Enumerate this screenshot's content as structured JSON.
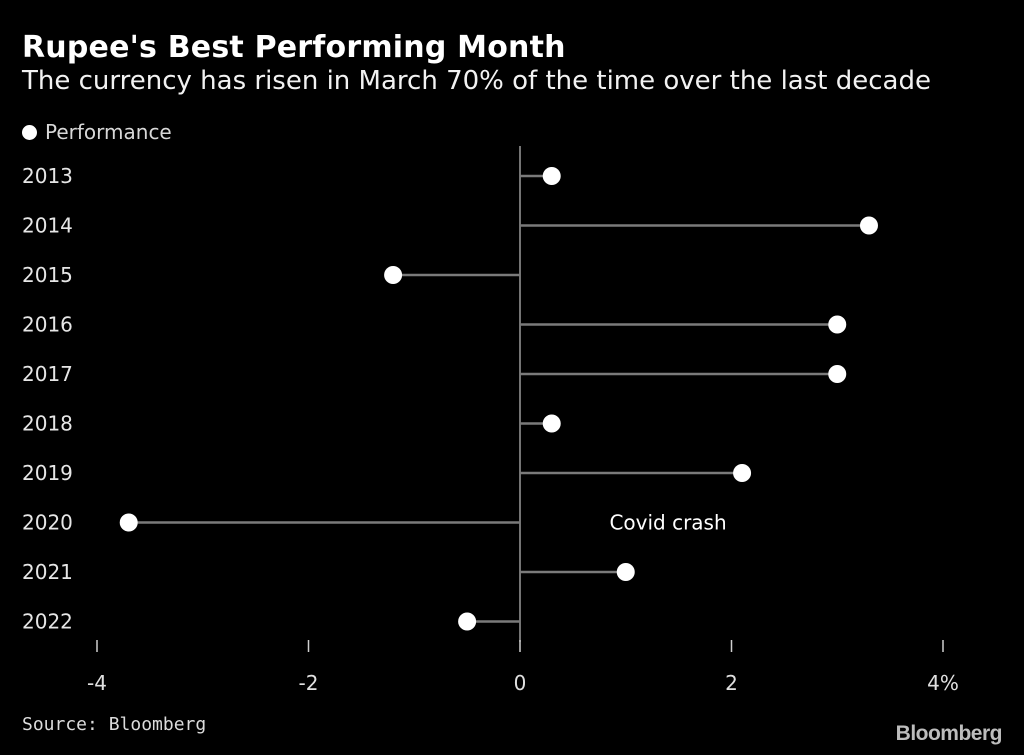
{
  "header": {
    "title": "Rupee's Best Performing Month",
    "subtitle": "The currency has risen in March 70% of the time over the last decade"
  },
  "footer": {
    "source": "Source: Bloomberg",
    "brand": "Bloomberg"
  },
  "colors": {
    "background": "#000000",
    "marker": "#ffffff",
    "stem": "#7a7a7a",
    "axis": "#9a9a9a",
    "text": "#ffffff"
  },
  "chart_data": {
    "type": "lollipop",
    "orientation": "horizontal",
    "categories": [
      "2013",
      "2014",
      "2015",
      "2016",
      "2017",
      "2018",
      "2019",
      "2020",
      "2021",
      "2022"
    ],
    "series": [
      {
        "name": "Performance",
        "values": [
          0.3,
          3.3,
          -1.2,
          3.0,
          3.0,
          0.3,
          2.1,
          -3.7,
          1.0,
          -0.5
        ]
      }
    ],
    "xlim": [
      -4,
      4
    ],
    "xticks": [
      -4,
      -2,
      0,
      2,
      4
    ],
    "xtick_labels": [
      "-4",
      "-2",
      "0",
      "2",
      "4%"
    ],
    "legend_position": "top-left",
    "grid": false,
    "annotations": [
      {
        "text": "Covid crash",
        "category": "2020",
        "x": 1.4
      }
    ]
  }
}
